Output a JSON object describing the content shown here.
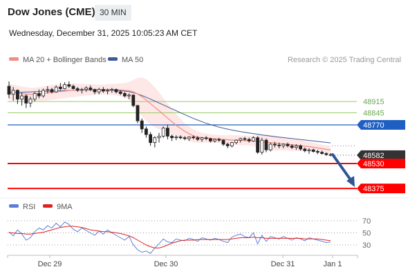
{
  "header": {
    "title": "Dow Jones (CME)",
    "timeframe": "30 MIN",
    "datetime": "Wednesday, December 31, 2025 10:05:23 AM CET"
  },
  "legend": {
    "ma20_label": "MA 20 + Bollinger Bands",
    "ma50_label": "MA 50",
    "source": "Research © 2025 Trading Central",
    "rsi_label": "RSI",
    "ma9_label": "9MA"
  },
  "colors": {
    "ma20": "#f28b82",
    "ma50": "#3c5a99",
    "band": "#fde3e3",
    "target_green": "#99cc66",
    "pivot_blue": "#1f5fc4",
    "support_red": "#ff0000",
    "current_dark": "#333333",
    "arrow": "#2f5597",
    "rsi_line": "#5b7fd6",
    "rsi_ma": "#e02020"
  },
  "chart_data": [
    {
      "type": "line",
      "name": "price",
      "x_ticks": [
        "Dec 29",
        "Dec 30",
        "Dec 31",
        "Jan 1"
      ],
      "levels": [
        {
          "value": 48915,
          "label": "48915",
          "role": "target2"
        },
        {
          "value": 48845,
          "label": "48845",
          "role": "target1"
        },
        {
          "value": 48770,
          "label": "48770",
          "role": "pivot"
        },
        {
          "value": 48582,
          "label": "48582",
          "role": "current"
        },
        {
          "value": 48530,
          "label": "48530",
          "role": "support1"
        },
        {
          "value": 48375,
          "label": "48375",
          "role": "support2"
        }
      ],
      "candles": [
        [
          49010,
          49040,
          48935,
          48960
        ],
        [
          48960,
          49005,
          48920,
          48985
        ],
        [
          48985,
          48990,
          48900,
          48930
        ],
        [
          48930,
          48970,
          48890,
          48950
        ],
        [
          48950,
          48960,
          48875,
          48905
        ],
        [
          48905,
          48945,
          48880,
          48930
        ],
        [
          48930,
          48975,
          48915,
          48965
        ],
        [
          48965,
          48990,
          48935,
          48950
        ],
        [
          48950,
          48995,
          48940,
          48985
        ],
        [
          48985,
          49010,
          48965,
          48990
        ],
        [
          48990,
          49000,
          48965,
          48975
        ],
        [
          48975,
          49015,
          48970,
          49005
        ],
        [
          49005,
          49030,
          48985,
          48995
        ],
        [
          48995,
          49035,
          48990,
          49020
        ],
        [
          49020,
          49040,
          49000,
          49010
        ],
        [
          49010,
          49020,
          48990,
          48995
        ],
        [
          48995,
          49005,
          48975,
          48985
        ],
        [
          48985,
          49000,
          48965,
          48990
        ],
        [
          48990,
          49010,
          48975,
          49000
        ],
        [
          49000,
          49015,
          48980,
          48990
        ],
        [
          48990,
          48995,
          48960,
          48975
        ],
        [
          48975,
          49000,
          48960,
          48990
        ],
        [
          48990,
          49005,
          48970,
          48980
        ],
        [
          48980,
          48995,
          48960,
          48985
        ],
        [
          48985,
          49000,
          48970,
          48990
        ],
        [
          48990,
          48995,
          48965,
          48975
        ],
        [
          48975,
          48985,
          48955,
          48965
        ],
        [
          48965,
          48975,
          48940,
          48950
        ],
        [
          48950,
          48965,
          48930,
          48955
        ],
        [
          48955,
          48960,
          48880,
          48890
        ],
        [
          48890,
          48895,
          48780,
          48795
        ],
        [
          48795,
          48810,
          48720,
          48745
        ],
        [
          48745,
          48760,
          48690,
          48710
        ],
        [
          48710,
          48725,
          48640,
          48660
        ],
        [
          48660,
          48700,
          48630,
          48690
        ],
        [
          48690,
          48720,
          48660,
          48700
        ],
        [
          48700,
          48760,
          48690,
          48750
        ],
        [
          48750,
          48770,
          48680,
          48700
        ],
        [
          48700,
          48710,
          48670,
          48690
        ],
        [
          48690,
          48705,
          48675,
          48695
        ],
        [
          48695,
          48705,
          48680,
          48690
        ],
        [
          48690,
          48700,
          48675,
          48685
        ],
        [
          48685,
          48700,
          48670,
          48695
        ],
        [
          48695,
          48705,
          48680,
          48690
        ],
        [
          48690,
          48700,
          48670,
          48680
        ],
        [
          48680,
          48695,
          48665,
          48690
        ],
        [
          48690,
          48700,
          48675,
          48685
        ],
        [
          48685,
          48690,
          48660,
          48670
        ],
        [
          48670,
          48685,
          48660,
          48680
        ],
        [
          48680,
          48690,
          48665,
          48675
        ],
        [
          48675,
          48680,
          48640,
          48650
        ],
        [
          48650,
          48660,
          48625,
          48640
        ],
        [
          48640,
          48665,
          48630,
          48660
        ],
        [
          48660,
          48680,
          48650,
          48675
        ],
        [
          48675,
          48690,
          48660,
          48685
        ],
        [
          48685,
          48695,
          48670,
          48680
        ],
        [
          48680,
          48690,
          48660,
          48670
        ],
        [
          48670,
          48700,
          48665,
          48690
        ],
        [
          48690,
          48700,
          48590,
          48600
        ],
        [
          48600,
          48690,
          48585,
          48675
        ],
        [
          48675,
          48685,
          48600,
          48615
        ],
        [
          48615,
          48660,
          48605,
          48650
        ],
        [
          48650,
          48665,
          48630,
          48645
        ],
        [
          48645,
          48660,
          48625,
          48640
        ],
        [
          48640,
          48655,
          48625,
          48650
        ],
        [
          48650,
          48660,
          48630,
          48640
        ],
        [
          48640,
          48650,
          48620,
          48630
        ],
        [
          48630,
          48650,
          48615,
          48640
        ],
        [
          48640,
          48648,
          48610,
          48620
        ],
        [
          48620,
          48630,
          48600,
          48610
        ],
        [
          48610,
          48625,
          48590,
          48615
        ],
        [
          48615,
          48622,
          48598,
          48605
        ],
        [
          48605,
          48615,
          48588,
          48600
        ],
        [
          48600,
          48610,
          48585,
          48592
        ],
        [
          48592,
          48600,
          48578,
          48585
        ],
        [
          48585,
          48595,
          48575,
          48582
        ]
      ],
      "ma20": [
        48975,
        48972,
        48968,
        48965,
        48962,
        48960,
        48960,
        48962,
        48965,
        48968,
        48972,
        48975,
        48978,
        48980,
        48983,
        48985,
        48986,
        48987,
        48988,
        48988,
        48989,
        48989,
        48990,
        48990,
        48990,
        48989,
        48987,
        48985,
        48982,
        48975,
        48962,
        48945,
        48925,
        48902,
        48880,
        48858,
        48835,
        48812,
        48790,
        48768,
        48748,
        48730,
        48715,
        48702,
        48695,
        48690,
        48688,
        48686,
        48684,
        48682,
        48680,
        48678,
        48676,
        48675,
        48674,
        48673,
        48672,
        48670,
        48668,
        48665,
        48662,
        48660,
        48657,
        48655,
        48652,
        48650,
        48647,
        48644,
        48641,
        48638,
        48635,
        48631,
        48627,
        48622,
        48618,
        48614
      ],
      "ma50": [
        48970,
        48971,
        48972,
        48973,
        48974,
        48975,
        48976,
        48977,
        48978,
        48979,
        48980,
        48981,
        48982,
        48983,
        48984,
        48985,
        48985,
        48986,
        48986,
        48986,
        48987,
        48987,
        48987,
        48986,
        48985,
        48984,
        48982,
        48980,
        48976,
        48970,
        48962,
        48952,
        48942,
        48930,
        48918,
        48906,
        48894,
        48882,
        48870,
        48858,
        48846,
        48834,
        48822,
        48810,
        48800,
        48790,
        48780,
        48772,
        48764,
        48756,
        48750,
        48744,
        48738,
        48733,
        48728,
        48724,
        48720,
        48716,
        48712,
        48708,
        48704,
        48700,
        48697,
        48694,
        48691,
        48688,
        48685,
        48682,
        48679,
        48676,
        48673,
        48670,
        48667,
        48664,
        48661,
        48658
      ],
      "band_width": [
        50,
        48,
        46,
        44,
        42,
        40,
        40,
        42,
        44,
        45,
        46,
        46,
        45,
        44,
        43,
        42,
        40,
        38,
        36,
        34,
        32,
        30,
        30,
        32,
        34,
        36,
        40,
        45,
        55,
        75,
        100,
        120,
        130,
        130,
        125,
        115,
        100,
        90,
        80,
        70,
        60,
        50,
        45,
        40,
        35,
        30,
        28,
        26,
        25,
        24,
        25,
        28,
        30,
        30,
        30,
        30,
        30,
        32,
        40,
        45,
        48,
        48,
        46,
        44,
        42,
        40,
        38,
        36,
        34,
        32,
        30,
        28,
        27,
        26,
        25,
        25
      ]
    },
    {
      "type": "line",
      "name": "RSI",
      "y_ticks": [
        70,
        50,
        30
      ],
      "ylim": [
        10,
        90
      ],
      "rsi": [
        52,
        45,
        55,
        48,
        38,
        42,
        52,
        58,
        55,
        62,
        58,
        66,
        60,
        68,
        64,
        56,
        52,
        58,
        54,
        50,
        46,
        53,
        48,
        55,
        50,
        46,
        42,
        38,
        44,
        30,
        22,
        18,
        20,
        16,
        25,
        32,
        40,
        35,
        34,
        40,
        38,
        37,
        41,
        39,
        36,
        42,
        40,
        38,
        41,
        39,
        36,
        34,
        43,
        46,
        48,
        44,
        42,
        50,
        32,
        46,
        36,
        44,
        42,
        40,
        44,
        41,
        38,
        42,
        40,
        37,
        42,
        40,
        38,
        36,
        34,
        35
      ],
      "rsi_ma": [
        50,
        50,
        49,
        49,
        48,
        48,
        49,
        50,
        51,
        53,
        55,
        57,
        59,
        60,
        61,
        61,
        60,
        59,
        57,
        55,
        54,
        53,
        52,
        52,
        51,
        50,
        49,
        47,
        45,
        42,
        38,
        34,
        30,
        27,
        25,
        25,
        27,
        30,
        33,
        35,
        37,
        38,
        38,
        38,
        39,
        39,
        39,
        39,
        39,
        39,
        39,
        39,
        40,
        41,
        42,
        42,
        42,
        43,
        42,
        42,
        41,
        41,
        41,
        41,
        41,
        41,
        41,
        41,
        41,
        40,
        40,
        40,
        40,
        39,
        38,
        37
      ]
    }
  ]
}
